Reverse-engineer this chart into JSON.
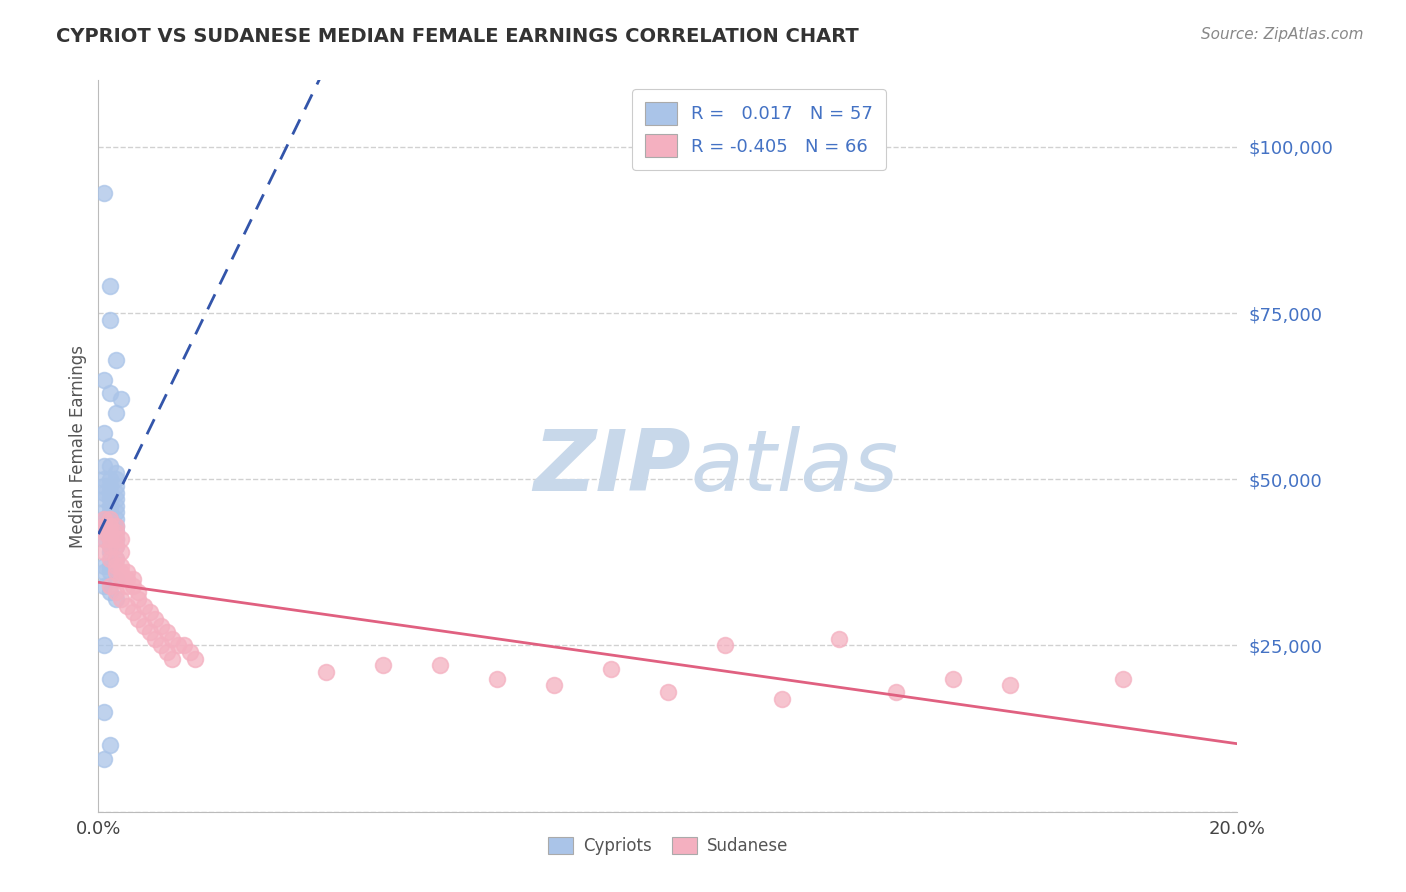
{
  "title": "CYPRIOT VS SUDANESE MEDIAN FEMALE EARNINGS CORRELATION CHART",
  "source": "Source: ZipAtlas.com",
  "ylabel": "Median Female Earnings",
  "xlim": [
    0.0,
    0.2
  ],
  "ylim": [
    0,
    110000
  ],
  "background_color": "#ffffff",
  "grid_color": "#cccccc",
  "cypriot_color": "#aac4e8",
  "sudanese_color": "#f4b0c0",
  "cypriot_line_color": "#3355aa",
  "sudanese_line_color": "#e06080",
  "cypriot_r": 0.017,
  "cypriot_n": 57,
  "sudanese_r": -0.405,
  "sudanese_n": 66,
  "watermark_color": "#c8d8ea",
  "ytick_color": "#4472c4",
  "legend_text_color": "#4472c4",
  "legend_dark_color": "#333333",
  "cypriot_points": [
    [
      0.001,
      93000
    ],
    [
      0.002,
      79000
    ],
    [
      0.002,
      74000
    ],
    [
      0.003,
      68000
    ],
    [
      0.001,
      65000
    ],
    [
      0.002,
      63000
    ],
    [
      0.003,
      60000
    ],
    [
      0.001,
      57000
    ],
    [
      0.002,
      55000
    ],
    [
      0.004,
      62000
    ],
    [
      0.001,
      52000
    ],
    [
      0.002,
      52000
    ],
    [
      0.003,
      51000
    ],
    [
      0.001,
      50000
    ],
    [
      0.002,
      50000
    ],
    [
      0.003,
      50000
    ],
    [
      0.001,
      49000
    ],
    [
      0.002,
      49000
    ],
    [
      0.003,
      49000
    ],
    [
      0.001,
      48000
    ],
    [
      0.002,
      48000
    ],
    [
      0.003,
      48000
    ],
    [
      0.001,
      47000
    ],
    [
      0.002,
      47000
    ],
    [
      0.003,
      47000
    ],
    [
      0.002,
      46000
    ],
    [
      0.003,
      46000
    ],
    [
      0.001,
      45000
    ],
    [
      0.002,
      45000
    ],
    [
      0.003,
      45000
    ],
    [
      0.001,
      44000
    ],
    [
      0.002,
      44000
    ],
    [
      0.003,
      44000
    ],
    [
      0.001,
      43000
    ],
    [
      0.002,
      43000
    ],
    [
      0.003,
      43000
    ],
    [
      0.002,
      42000
    ],
    [
      0.003,
      42000
    ],
    [
      0.001,
      41000
    ],
    [
      0.003,
      41000
    ],
    [
      0.002,
      40000
    ],
    [
      0.003,
      40000
    ],
    [
      0.002,
      39000
    ],
    [
      0.003,
      38000
    ],
    [
      0.001,
      37000
    ],
    [
      0.002,
      37000
    ],
    [
      0.001,
      36000
    ],
    [
      0.002,
      36000
    ],
    [
      0.003,
      35000
    ],
    [
      0.001,
      34000
    ],
    [
      0.002,
      33000
    ],
    [
      0.003,
      32000
    ],
    [
      0.001,
      25000
    ],
    [
      0.002,
      20000
    ],
    [
      0.001,
      15000
    ],
    [
      0.002,
      10000
    ],
    [
      0.001,
      8000
    ]
  ],
  "sudanese_points": [
    [
      0.001,
      44000
    ],
    [
      0.002,
      44000
    ],
    [
      0.003,
      43000
    ],
    [
      0.001,
      43000
    ],
    [
      0.002,
      43000
    ],
    [
      0.003,
      42000
    ],
    [
      0.001,
      42000
    ],
    [
      0.002,
      42000
    ],
    [
      0.001,
      41000
    ],
    [
      0.003,
      41000
    ],
    [
      0.002,
      41000
    ],
    [
      0.004,
      41000
    ],
    [
      0.002,
      40000
    ],
    [
      0.003,
      40000
    ],
    [
      0.001,
      39000
    ],
    [
      0.004,
      39000
    ],
    [
      0.002,
      38000
    ],
    [
      0.003,
      38000
    ],
    [
      0.003,
      37000
    ],
    [
      0.004,
      37000
    ],
    [
      0.004,
      36000
    ],
    [
      0.005,
      36000
    ],
    [
      0.003,
      36000
    ],
    [
      0.005,
      35000
    ],
    [
      0.004,
      35000
    ],
    [
      0.006,
      35000
    ],
    [
      0.002,
      34000
    ],
    [
      0.005,
      34000
    ],
    [
      0.006,
      34000
    ],
    [
      0.003,
      33000
    ],
    [
      0.007,
      33000
    ],
    [
      0.004,
      32000
    ],
    [
      0.007,
      32000
    ],
    [
      0.005,
      31000
    ],
    [
      0.008,
      31000
    ],
    [
      0.006,
      30000
    ],
    [
      0.009,
      30000
    ],
    [
      0.007,
      29000
    ],
    [
      0.01,
      29000
    ],
    [
      0.008,
      28000
    ],
    [
      0.011,
      28000
    ],
    [
      0.009,
      27000
    ],
    [
      0.012,
      27000
    ],
    [
      0.01,
      26000
    ],
    [
      0.013,
      26000
    ],
    [
      0.011,
      25000
    ],
    [
      0.014,
      25000
    ],
    [
      0.015,
      25000
    ],
    [
      0.012,
      24000
    ],
    [
      0.016,
      24000
    ],
    [
      0.013,
      23000
    ],
    [
      0.017,
      23000
    ],
    [
      0.05,
      22000
    ],
    [
      0.06,
      22000
    ],
    [
      0.09,
      21500
    ],
    [
      0.04,
      21000
    ],
    [
      0.11,
      25000
    ],
    [
      0.13,
      26000
    ],
    [
      0.07,
      20000
    ],
    [
      0.08,
      19000
    ],
    [
      0.15,
      20000
    ],
    [
      0.16,
      19000
    ],
    [
      0.1,
      18000
    ],
    [
      0.14,
      18000
    ],
    [
      0.12,
      17000
    ],
    [
      0.18,
      20000
    ]
  ]
}
